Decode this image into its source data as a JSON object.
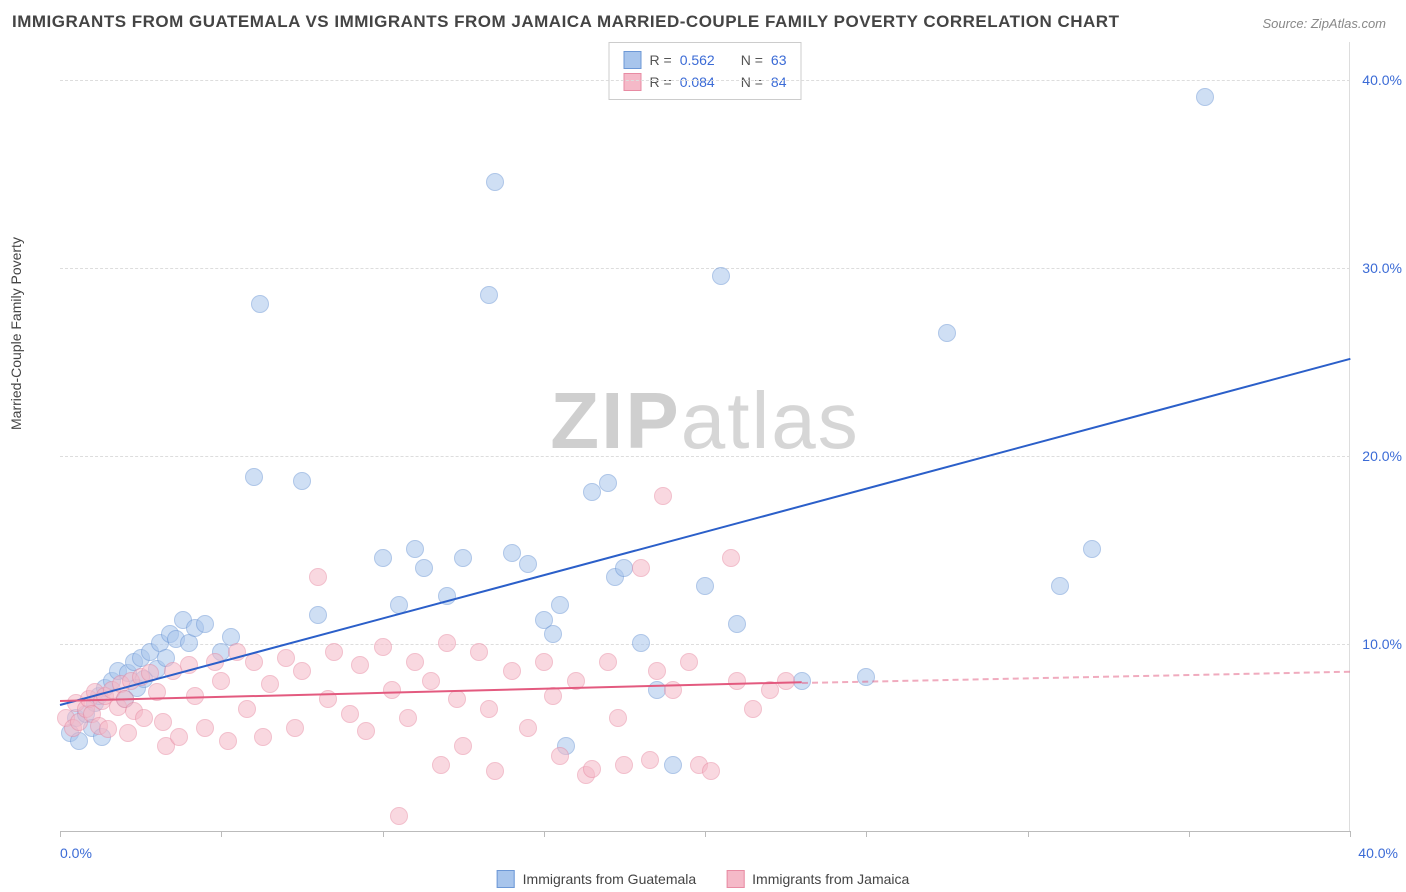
{
  "title": "IMMIGRANTS FROM GUATEMALA VS IMMIGRANTS FROM JAMAICA MARRIED-COUPLE FAMILY POVERTY CORRELATION CHART",
  "source_label": "Source: ZipAtlas.com",
  "y_axis_label": "Married-Couple Family Poverty",
  "watermark_zip": "ZIP",
  "watermark_atlas": "atlas",
  "chart": {
    "type": "scatter",
    "xlim": [
      0,
      40
    ],
    "ylim": [
      0,
      42
    ],
    "x_ticks": [
      0,
      5,
      10,
      15,
      20,
      25,
      30,
      35,
      40
    ],
    "x_tick_labels": {
      "start": "0.0%",
      "end": "40.0%"
    },
    "y_gridlines": [
      10,
      20,
      30,
      40
    ],
    "y_tick_labels": [
      "10.0%",
      "20.0%",
      "30.0%",
      "40.0%"
    ],
    "background_color": "#ffffff",
    "grid_color": "#dddddd",
    "axis_color": "#3b6bd6",
    "series": [
      {
        "name": "Immigrants from Guatemala",
        "fill_color": "#a8c5ec",
        "fill_opacity": 0.55,
        "stroke_color": "#6d98d6",
        "trend_color": "#2b5fc9",
        "R": "0.562",
        "N": "63",
        "point_radius": 9,
        "trendline": {
          "x1": 0,
          "y1": 6.8,
          "x2": 40,
          "y2": 25.2
        },
        "points": [
          [
            0.3,
            5.2
          ],
          [
            0.5,
            6.0
          ],
          [
            0.6,
            4.8
          ],
          [
            0.8,
            6.2
          ],
          [
            1.0,
            5.5
          ],
          [
            1.1,
            6.8
          ],
          [
            1.2,
            7.2
          ],
          [
            1.3,
            5.0
          ],
          [
            1.4,
            7.6
          ],
          [
            1.6,
            8.0
          ],
          [
            1.8,
            8.5
          ],
          [
            2.0,
            7.0
          ],
          [
            2.1,
            8.4
          ],
          [
            2.3,
            9.0
          ],
          [
            2.4,
            7.6
          ],
          [
            2.5,
            9.2
          ],
          [
            2.6,
            8.1
          ],
          [
            2.8,
            9.5
          ],
          [
            3.0,
            8.6
          ],
          [
            3.1,
            10.0
          ],
          [
            3.3,
            9.2
          ],
          [
            3.4,
            10.5
          ],
          [
            3.6,
            10.2
          ],
          [
            3.8,
            11.2
          ],
          [
            4.0,
            10.0
          ],
          [
            4.2,
            10.8
          ],
          [
            4.5,
            11.0
          ],
          [
            5.0,
            9.5
          ],
          [
            5.3,
            10.3
          ],
          [
            6.0,
            18.8
          ],
          [
            6.2,
            28.0
          ],
          [
            7.5,
            18.6
          ],
          [
            8.0,
            11.5
          ],
          [
            10.0,
            14.5
          ],
          [
            10.5,
            12.0
          ],
          [
            11.0,
            15.0
          ],
          [
            11.3,
            14.0
          ],
          [
            12.0,
            12.5
          ],
          [
            13.3,
            28.5
          ],
          [
            13.5,
            34.5
          ],
          [
            14.0,
            14.8
          ],
          [
            14.5,
            14.2
          ],
          [
            15.0,
            11.2
          ],
          [
            15.3,
            10.5
          ],
          [
            15.5,
            12.0
          ],
          [
            15.7,
            4.5
          ],
          [
            16.5,
            18.0
          ],
          [
            17.0,
            18.5
          ],
          [
            17.2,
            13.5
          ],
          [
            17.5,
            14.0
          ],
          [
            18.0,
            10.0
          ],
          [
            18.5,
            7.5
          ],
          [
            19.0,
            3.5
          ],
          [
            20.0,
            13.0
          ],
          [
            20.5,
            29.5
          ],
          [
            21.0,
            11.0
          ],
          [
            23.0,
            8.0
          ],
          [
            25.0,
            8.2
          ],
          [
            27.5,
            26.5
          ],
          [
            31.0,
            13.0
          ],
          [
            32.0,
            15.0
          ],
          [
            35.5,
            39.0
          ],
          [
            12.5,
            14.5
          ]
        ]
      },
      {
        "name": "Immigrants from Jamaica",
        "fill_color": "#f5b9c8",
        "fill_opacity": 0.55,
        "stroke_color": "#e88ba3",
        "trend_color": "#e35a7f",
        "R": "0.084",
        "N": "84",
        "point_radius": 9,
        "trendline_solid": {
          "x1": 0,
          "y1": 7.0,
          "x2": 23,
          "y2": 8.0
        },
        "trendline_dashed": {
          "x1": 23,
          "y1": 8.0,
          "x2": 40,
          "y2": 8.6
        },
        "points": [
          [
            0.2,
            6.0
          ],
          [
            0.4,
            5.5
          ],
          [
            0.5,
            6.8
          ],
          [
            0.6,
            5.8
          ],
          [
            0.8,
            6.5
          ],
          [
            0.9,
            7.0
          ],
          [
            1.0,
            6.2
          ],
          [
            1.1,
            7.4
          ],
          [
            1.2,
            5.6
          ],
          [
            1.3,
            6.9
          ],
          [
            1.4,
            7.2
          ],
          [
            1.5,
            5.4
          ],
          [
            1.6,
            7.5
          ],
          [
            1.8,
            6.6
          ],
          [
            1.9,
            7.8
          ],
          [
            2.0,
            7.0
          ],
          [
            2.1,
            5.2
          ],
          [
            2.2,
            8.0
          ],
          [
            2.3,
            6.4
          ],
          [
            2.5,
            8.2
          ],
          [
            2.6,
            6.0
          ],
          [
            2.8,
            8.4
          ],
          [
            3.0,
            7.4
          ],
          [
            3.2,
            5.8
          ],
          [
            3.3,
            4.5
          ],
          [
            3.5,
            8.5
          ],
          [
            3.7,
            5.0
          ],
          [
            4.0,
            8.8
          ],
          [
            4.2,
            7.2
          ],
          [
            4.5,
            5.5
          ],
          [
            4.8,
            9.0
          ],
          [
            5.0,
            8.0
          ],
          [
            5.2,
            4.8
          ],
          [
            5.5,
            9.5
          ],
          [
            5.8,
            6.5
          ],
          [
            6.0,
            9.0
          ],
          [
            6.3,
            5.0
          ],
          [
            6.5,
            7.8
          ],
          [
            7.0,
            9.2
          ],
          [
            7.3,
            5.5
          ],
          [
            7.5,
            8.5
          ],
          [
            8.0,
            13.5
          ],
          [
            8.3,
            7.0
          ],
          [
            8.5,
            9.5
          ],
          [
            9.0,
            6.2
          ],
          [
            9.3,
            8.8
          ],
          [
            9.5,
            5.3
          ],
          [
            10.0,
            9.8
          ],
          [
            10.3,
            7.5
          ],
          [
            10.5,
            0.8
          ],
          [
            10.8,
            6.0
          ],
          [
            11.0,
            9.0
          ],
          [
            11.5,
            8.0
          ],
          [
            11.8,
            3.5
          ],
          [
            12.0,
            10.0
          ],
          [
            12.3,
            7.0
          ],
          [
            12.5,
            4.5
          ],
          [
            13.0,
            9.5
          ],
          [
            13.3,
            6.5
          ],
          [
            13.5,
            3.2
          ],
          [
            14.0,
            8.5
          ],
          [
            14.5,
            5.5
          ],
          [
            15.0,
            9.0
          ],
          [
            15.3,
            7.2
          ],
          [
            15.5,
            4.0
          ],
          [
            16.0,
            8.0
          ],
          [
            16.3,
            3.0
          ],
          [
            16.5,
            3.3
          ],
          [
            17.0,
            9.0
          ],
          [
            17.3,
            6.0
          ],
          [
            17.5,
            3.5
          ],
          [
            18.0,
            14.0
          ],
          [
            18.3,
            3.8
          ],
          [
            18.5,
            8.5
          ],
          [
            18.7,
            17.8
          ],
          [
            19.0,
            7.5
          ],
          [
            19.5,
            9.0
          ],
          [
            19.8,
            3.5
          ],
          [
            20.2,
            3.2
          ],
          [
            20.8,
            14.5
          ],
          [
            21.0,
            8.0
          ],
          [
            21.5,
            6.5
          ],
          [
            22.0,
            7.5
          ],
          [
            22.5,
            8.0
          ]
        ]
      }
    ]
  },
  "legend_box": {
    "r_label": "R =",
    "n_label": "N ="
  },
  "bottom_legend": {
    "guatemala_label": "Immigrants from Guatemala",
    "jamaica_label": "Immigrants from Jamaica"
  }
}
